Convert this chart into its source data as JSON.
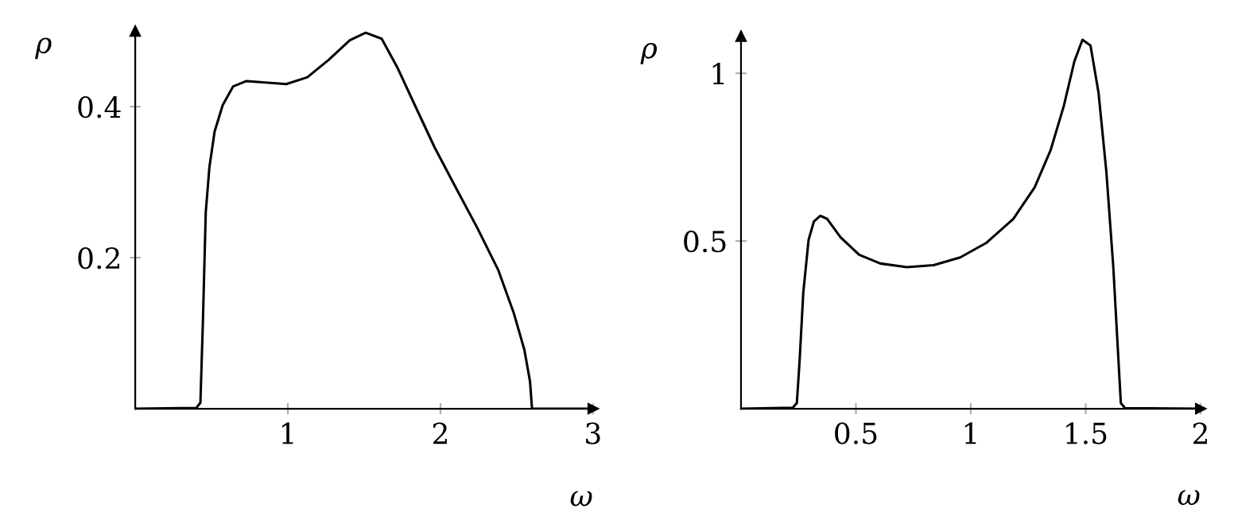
{
  "chart_data": [
    {
      "type": "line",
      "xlabel": "ω",
      "ylabel": "ρ",
      "xlim": [
        0,
        3.0
      ],
      "ylim": [
        0,
        0.5
      ],
      "xticks": [
        1,
        2,
        3
      ],
      "yticks": [
        0.2,
        0.4
      ],
      "series": [
        {
          "color": "#000000",
          "x": [
            0,
            0.4,
            0.427,
            0.444,
            0.462,
            0.486,
            0.52,
            0.573,
            0.642,
            0.729,
            0.851,
            0.99,
            1.128,
            1.267,
            1.406,
            1.51,
            1.615,
            1.72,
            1.823,
            1.962,
            2.1,
            2.24,
            2.378,
            2.48,
            2.55,
            2.587,
            2.6,
            3.0
          ],
          "values": [
            0,
            0.001,
            0.008,
            0.12,
            0.26,
            0.32,
            0.367,
            0.402,
            0.427,
            0.434,
            0.432,
            0.43,
            0.439,
            0.462,
            0.488,
            0.498,
            0.49,
            0.451,
            0.406,
            0.346,
            0.293,
            0.24,
            0.184,
            0.127,
            0.078,
            0.036,
            0,
            0
          ]
        }
      ]
    },
    {
      "type": "line",
      "xlabel": "ω",
      "ylabel": "ρ",
      "xlim": [
        0,
        2.0
      ],
      "ylim": [
        0,
        1.11
      ],
      "xticks": [
        0.5,
        1,
        1.5,
        2
      ],
      "yticks": [
        0.5,
        1
      ],
      "series": [
        {
          "color": "#000000",
          "x": [
            0,
            0.225,
            0.243,
            0.255,
            0.271,
            0.294,
            0.317,
            0.345,
            0.375,
            0.433,
            0.514,
            0.606,
            0.722,
            0.838,
            0.954,
            1.069,
            1.185,
            1.278,
            1.347,
            1.405,
            1.451,
            1.486,
            1.521,
            1.556,
            1.59,
            1.62,
            1.639,
            1.653,
            1.671,
            2.0
          ],
          "values": [
            0,
            0.003,
            0.017,
            0.143,
            0.346,
            0.503,
            0.558,
            0.575,
            0.566,
            0.511,
            0.459,
            0.433,
            0.422,
            0.428,
            0.451,
            0.495,
            0.566,
            0.66,
            0.77,
            0.903,
            1.036,
            1.1,
            1.083,
            0.942,
            0.707,
            0.425,
            0.19,
            0.017,
            0.002,
            0
          ]
        }
      ]
    }
  ]
}
